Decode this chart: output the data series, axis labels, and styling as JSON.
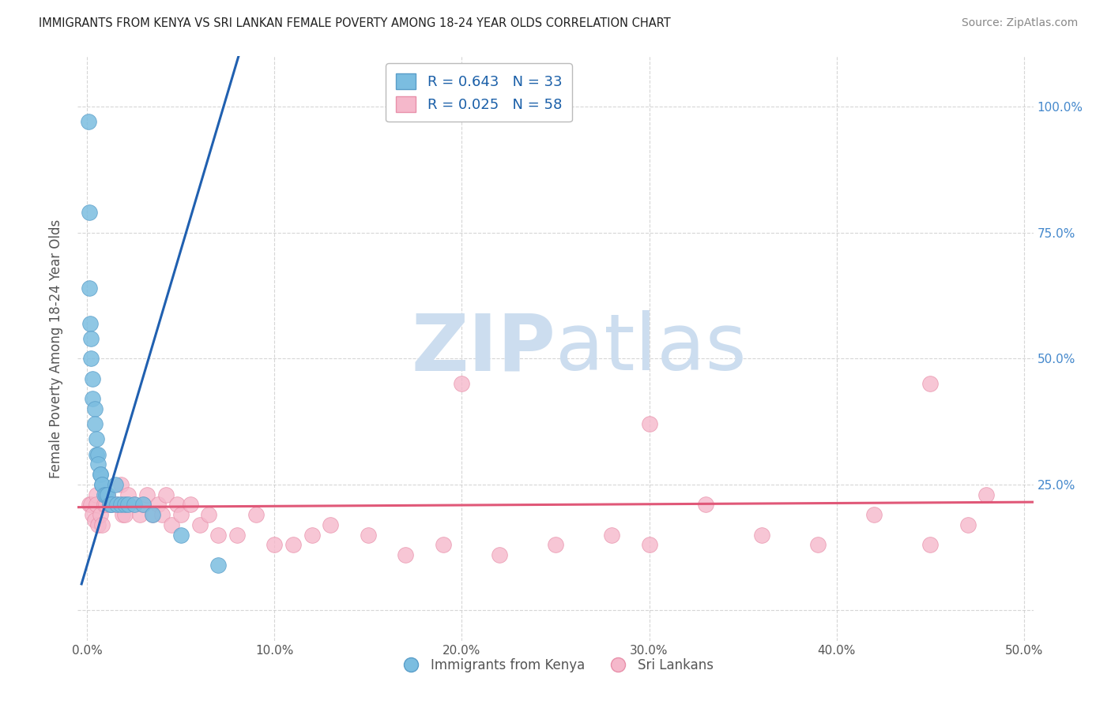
{
  "title": "IMMIGRANTS FROM KENYA VS SRI LANKAN FEMALE POVERTY AMONG 18-24 YEAR OLDS CORRELATION CHART",
  "source": "Source: ZipAtlas.com",
  "ylabel": "Female Poverty Among 18-24 Year Olds",
  "xlim": [
    -0.005,
    0.505
  ],
  "ylim": [
    -0.06,
    1.1
  ],
  "xtick_vals": [
    0.0,
    0.1,
    0.2,
    0.3,
    0.4,
    0.5
  ],
  "xtick_labels": [
    "0.0%",
    "10.0%",
    "20.0%",
    "30.0%",
    "40.0%",
    "50.0%"
  ],
  "ytick_vals": [
    0.0,
    0.25,
    0.5,
    0.75,
    1.0
  ],
  "ytick_labels_right": [
    "",
    "25.0%",
    "50.0%",
    "75.0%",
    "100.0%"
  ],
  "kenya_R": 0.643,
  "kenya_N": 33,
  "srilanka_R": 0.025,
  "srilanka_N": 58,
  "kenya_color": "#7bbde0",
  "kenya_edge": "#5a9ec9",
  "srilanka_color": "#f5b8cb",
  "srilanka_edge": "#e890aa",
  "line_kenya_color": "#2060b0",
  "line_srilanka_color": "#e05878",
  "watermark_zip": "ZIP",
  "watermark_atlas": "atlas",
  "watermark_color": "#ccddef",
  "background_color": "#ffffff",
  "grid_color": "#cccccc",
  "title_color": "#222222",
  "source_color": "#888888",
  "ylabel_color": "#555555",
  "tick_color": "#555555",
  "right_tick_color": "#4488cc",
  "legend_label_color": "#1a5fa8",
  "kenya_x": [
    0.0008,
    0.001,
    0.0012,
    0.0015,
    0.002,
    0.002,
    0.003,
    0.003,
    0.004,
    0.004,
    0.005,
    0.005,
    0.006,
    0.006,
    0.007,
    0.007,
    0.008,
    0.008,
    0.009,
    0.01,
    0.011,
    0.012,
    0.013,
    0.015,
    0.016,
    0.018,
    0.02,
    0.022,
    0.025,
    0.03,
    0.035,
    0.05,
    0.07
  ],
  "kenya_y": [
    0.97,
    0.79,
    0.64,
    0.57,
    0.54,
    0.5,
    0.46,
    0.42,
    0.4,
    0.37,
    0.34,
    0.31,
    0.31,
    0.29,
    0.27,
    0.27,
    0.25,
    0.25,
    0.23,
    0.23,
    0.23,
    0.21,
    0.21,
    0.25,
    0.21,
    0.21,
    0.21,
    0.21,
    0.21,
    0.21,
    0.19,
    0.15,
    0.09
  ],
  "srilanka_x": [
    0.001,
    0.002,
    0.003,
    0.004,
    0.005,
    0.005,
    0.006,
    0.007,
    0.008,
    0.009,
    0.01,
    0.011,
    0.012,
    0.013,
    0.015,
    0.016,
    0.018,
    0.019,
    0.02,
    0.022,
    0.025,
    0.028,
    0.03,
    0.032,
    0.035,
    0.038,
    0.04,
    0.042,
    0.045,
    0.048,
    0.05,
    0.055,
    0.06,
    0.065,
    0.07,
    0.08,
    0.09,
    0.1,
    0.11,
    0.12,
    0.13,
    0.15,
    0.17,
    0.19,
    0.22,
    0.25,
    0.28,
    0.3,
    0.33,
    0.36,
    0.39,
    0.42,
    0.45,
    0.47,
    0.2,
    0.3,
    0.45,
    0.48
  ],
  "srilanka_y": [
    0.21,
    0.21,
    0.19,
    0.18,
    0.23,
    0.21,
    0.17,
    0.19,
    0.17,
    0.21,
    0.21,
    0.23,
    0.21,
    0.21,
    0.21,
    0.21,
    0.25,
    0.19,
    0.19,
    0.23,
    0.21,
    0.19,
    0.21,
    0.23,
    0.19,
    0.21,
    0.19,
    0.23,
    0.17,
    0.21,
    0.19,
    0.21,
    0.17,
    0.19,
    0.15,
    0.15,
    0.19,
    0.13,
    0.13,
    0.15,
    0.17,
    0.15,
    0.11,
    0.13,
    0.11,
    0.13,
    0.15,
    0.13,
    0.21,
    0.15,
    0.13,
    0.19,
    0.13,
    0.17,
    0.45,
    0.37,
    0.45,
    0.23
  ],
  "kenya_line_x": [
    -0.003,
    0.085
  ],
  "kenya_line_slope": 12.5,
  "kenya_line_intercept": 0.09,
  "srilanka_line_x": [
    -0.01,
    0.51
  ],
  "srilanka_line_slope": 0.02,
  "srilanka_line_intercept": 0.205
}
